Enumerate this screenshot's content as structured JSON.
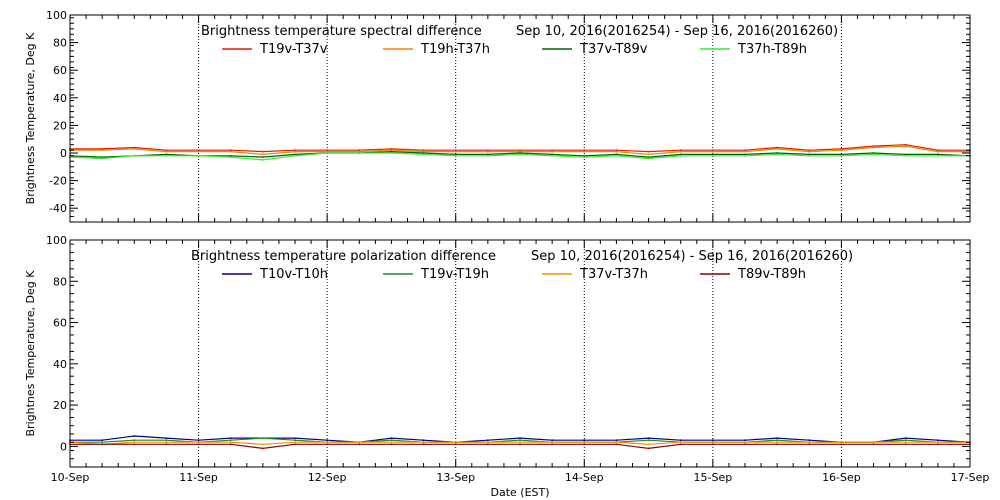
{
  "chart_data": [
    {
      "type": "line",
      "title_left": "Brightness temperature spectral difference",
      "title_right": "Sep 10, 2016(2016254) - Sep 16, 2016(2016260)",
      "ylabel": "Brightness Temperature, Deg K",
      "ylim": [
        -50,
        100
      ],
      "yticks": [
        -40,
        -20,
        0,
        20,
        40,
        60,
        80,
        100
      ],
      "xlim": [
        "2016-09-10",
        "2016-09-17"
      ],
      "grid": true,
      "legend_position": "top",
      "series": [
        {
          "name": "T19v-T37v",
          "color": "#dd2200",
          "x": [
            "2016-09-10T00:00",
            "2016-09-10T06:00",
            "2016-09-10T12:00",
            "2016-09-10T18:00",
            "2016-09-11T00:00",
            "2016-09-11T06:00",
            "2016-09-11T12:00",
            "2016-09-11T18:00",
            "2016-09-12T00:00",
            "2016-09-12T06:00",
            "2016-09-12T12:00",
            "2016-09-12T18:00",
            "2016-09-13T00:00",
            "2016-09-13T06:00",
            "2016-09-13T12:00",
            "2016-09-13T18:00",
            "2016-09-14T00:00",
            "2016-09-14T06:00",
            "2016-09-14T12:00",
            "2016-09-14T18:00",
            "2016-09-15T00:00",
            "2016-09-15T06:00",
            "2016-09-15T12:00",
            "2016-09-15T18:00",
            "2016-09-16T00:00",
            "2016-09-16T06:00",
            "2016-09-16T12:00",
            "2016-09-16T18:00",
            "2016-09-17T00:00"
          ],
          "y": [
            3,
            3,
            4,
            2,
            2,
            2,
            1,
            2,
            2,
            2,
            3,
            2,
            2,
            2,
            2,
            2,
            2,
            2,
            1,
            2,
            2,
            2,
            4,
            2,
            3,
            5,
            6,
            2,
            2
          ]
        },
        {
          "name": "T19h-T37h",
          "color": "#ff7f00",
          "x": [
            "2016-09-10T00:00",
            "2016-09-10T06:00",
            "2016-09-10T12:00",
            "2016-09-10T18:00",
            "2016-09-11T00:00",
            "2016-09-11T06:00",
            "2016-09-11T12:00",
            "2016-09-11T18:00",
            "2016-09-12T00:00",
            "2016-09-12T06:00",
            "2016-09-12T12:00",
            "2016-09-12T18:00",
            "2016-09-13T00:00",
            "2016-09-13T06:00",
            "2016-09-13T12:00",
            "2016-09-13T18:00",
            "2016-09-14T00:00",
            "2016-09-14T06:00",
            "2016-09-14T12:00",
            "2016-09-14T18:00",
            "2016-09-15T00:00",
            "2016-09-15T06:00",
            "2016-09-15T12:00",
            "2016-09-15T18:00",
            "2016-09-16T00:00",
            "2016-09-16T06:00",
            "2016-09-16T12:00",
            "2016-09-16T18:00",
            "2016-09-17T00:00"
          ],
          "y": [
            2,
            2,
            3,
            1,
            1,
            1,
            -1,
            1,
            1,
            1,
            2,
            1,
            1,
            1,
            1,
            1,
            1,
            1,
            -1,
            1,
            1,
            1,
            3,
            1,
            2,
            4,
            5,
            1,
            1
          ]
        },
        {
          "name": "T37v-T89v",
          "color": "#006400",
          "x": [
            "2016-09-10T00:00",
            "2016-09-10T06:00",
            "2016-09-10T12:00",
            "2016-09-10T18:00",
            "2016-09-11T00:00",
            "2016-09-11T06:00",
            "2016-09-11T12:00",
            "2016-09-11T18:00",
            "2016-09-12T00:00",
            "2016-09-12T06:00",
            "2016-09-12T12:00",
            "2016-09-12T18:00",
            "2016-09-13T00:00",
            "2016-09-13T06:00",
            "2016-09-13T12:00",
            "2016-09-13T18:00",
            "2016-09-14T00:00",
            "2016-09-14T06:00",
            "2016-09-14T12:00",
            "2016-09-14T18:00",
            "2016-09-15T00:00",
            "2016-09-15T06:00",
            "2016-09-15T12:00",
            "2016-09-15T18:00",
            "2016-09-16T00:00",
            "2016-09-16T06:00",
            "2016-09-16T12:00",
            "2016-09-16T18:00",
            "2016-09-17T00:00"
          ],
          "y": [
            -2,
            -3,
            -2,
            -1,
            -2,
            -2,
            -3,
            -1,
            0,
            0,
            1,
            0,
            -1,
            -1,
            0,
            -1,
            -2,
            -1,
            -3,
            -1,
            -1,
            -1,
            0,
            -1,
            -1,
            0,
            -1,
            -1,
            -2
          ]
        },
        {
          "name": "T37h-T89h",
          "color": "#33ee33",
          "x": [
            "2016-09-10T00:00",
            "2016-09-10T06:00",
            "2016-09-10T12:00",
            "2016-09-10T18:00",
            "2016-09-11T00:00",
            "2016-09-11T06:00",
            "2016-09-11T12:00",
            "2016-09-11T18:00",
            "2016-09-12T00:00",
            "2016-09-12T06:00",
            "2016-09-12T12:00",
            "2016-09-12T18:00",
            "2016-09-13T00:00",
            "2016-09-13T06:00",
            "2016-09-13T12:00",
            "2016-09-13T18:00",
            "2016-09-14T00:00",
            "2016-09-14T06:00",
            "2016-09-14T12:00",
            "2016-09-14T18:00",
            "2016-09-15T00:00",
            "2016-09-15T06:00",
            "2016-09-15T12:00",
            "2016-09-15T18:00",
            "2016-09-16T00:00",
            "2016-09-16T06:00",
            "2016-09-16T12:00",
            "2016-09-16T18:00",
            "2016-09-17T00:00"
          ],
          "y": [
            -3,
            -4,
            -2,
            -2,
            -2,
            -3,
            -5,
            -2,
            0,
            0,
            0,
            -1,
            -2,
            -2,
            -1,
            -2,
            -3,
            -2,
            -4,
            -2,
            -2,
            -2,
            -1,
            -2,
            -2,
            -1,
            -2,
            -2,
            -2
          ]
        }
      ]
    },
    {
      "type": "line",
      "title_left": "Brightness temperature polarization difference",
      "title_right": "Sep 10, 2016(2016254) - Sep 16, 2016(2016260)",
      "ylabel": "Brightnes Temperature, Deg K",
      "xlabel": "Date (EST)",
      "ylim": [
        -10,
        100
      ],
      "yticks": [
        0,
        20,
        40,
        60,
        80,
        100
      ],
      "xlim": [
        "2016-09-10",
        "2016-09-17"
      ],
      "xticks": [
        "10-Sep",
        "11-Sep",
        "12-Sep",
        "13-Sep",
        "14-Sep",
        "15-Sep",
        "16-Sep",
        "17-Sep"
      ],
      "grid": true,
      "legend_position": "top",
      "series": [
        {
          "name": "T10v-T10h",
          "color": "#00008b",
          "x": [
            "2016-09-10T00:00",
            "2016-09-10T06:00",
            "2016-09-10T12:00",
            "2016-09-10T18:00",
            "2016-09-11T00:00",
            "2016-09-11T06:00",
            "2016-09-11T12:00",
            "2016-09-11T18:00",
            "2016-09-12T00:00",
            "2016-09-12T06:00",
            "2016-09-12T12:00",
            "2016-09-12T18:00",
            "2016-09-13T00:00",
            "2016-09-13T06:00",
            "2016-09-13T12:00",
            "2016-09-13T18:00",
            "2016-09-14T00:00",
            "2016-09-14T06:00",
            "2016-09-14T12:00",
            "2016-09-14T18:00",
            "2016-09-15T00:00",
            "2016-09-15T06:00",
            "2016-09-15T12:00",
            "2016-09-15T18:00",
            "2016-09-16T00:00",
            "2016-09-16T06:00",
            "2016-09-16T12:00",
            "2016-09-16T18:00",
            "2016-09-17T00:00"
          ],
          "y": [
            3,
            3,
            5,
            4,
            3,
            4,
            4,
            4,
            3,
            2,
            4,
            3,
            2,
            3,
            4,
            3,
            3,
            3,
            4,
            3,
            3,
            3,
            4,
            3,
            2,
            2,
            4,
            3,
            2
          ]
        },
        {
          "name": "T19v-T19h",
          "color": "#228b22",
          "x": [
            "2016-09-10T00:00",
            "2016-09-10T06:00",
            "2016-09-10T12:00",
            "2016-09-10T18:00",
            "2016-09-11T00:00",
            "2016-09-11T06:00",
            "2016-09-11T12:00",
            "2016-09-11T18:00",
            "2016-09-12T00:00",
            "2016-09-12T06:00",
            "2016-09-12T12:00",
            "2016-09-12T18:00",
            "2016-09-13T00:00",
            "2016-09-13T06:00",
            "2016-09-13T12:00",
            "2016-09-13T18:00",
            "2016-09-14T00:00",
            "2016-09-14T06:00",
            "2016-09-14T12:00",
            "2016-09-14T18:00",
            "2016-09-15T00:00",
            "2016-09-15T06:00",
            "2016-09-15T12:00",
            "2016-09-15T18:00",
            "2016-09-16T00:00",
            "2016-09-16T06:00",
            "2016-09-16T12:00",
            "2016-09-16T18:00",
            "2016-09-17T00:00"
          ],
          "y": [
            2,
            2,
            3,
            3,
            2,
            3,
            4,
            3,
            2,
            2,
            3,
            2,
            2,
            2,
            3,
            2,
            2,
            2,
            3,
            2,
            2,
            2,
            3,
            2,
            2,
            2,
            3,
            2,
            2
          ]
        },
        {
          "name": "T37v-T37h",
          "color": "#ff8c00",
          "x": [
            "2016-09-10T00:00",
            "2016-09-10T06:00",
            "2016-09-10T12:00",
            "2016-09-10T18:00",
            "2016-09-11T00:00",
            "2016-09-11T06:00",
            "2016-09-11T12:00",
            "2016-09-11T18:00",
            "2016-09-12T00:00",
            "2016-09-12T06:00",
            "2016-09-12T12:00",
            "2016-09-12T18:00",
            "2016-09-13T00:00",
            "2016-09-13T06:00",
            "2016-09-13T12:00",
            "2016-09-13T18:00",
            "2016-09-14T00:00",
            "2016-09-14T06:00",
            "2016-09-14T12:00",
            "2016-09-14T18:00",
            "2016-09-15T00:00",
            "2016-09-15T06:00",
            "2016-09-15T12:00",
            "2016-09-15T18:00",
            "2016-09-16T00:00",
            "2016-09-16T06:00",
            "2016-09-16T12:00",
            "2016-09-16T18:00",
            "2016-09-17T00:00"
          ],
          "y": [
            2,
            1,
            2,
            2,
            2,
            2,
            1,
            2,
            2,
            2,
            2,
            2,
            2,
            2,
            2,
            2,
            2,
            2,
            1,
            2,
            2,
            2,
            2,
            2,
            2,
            2,
            2,
            2,
            2
          ]
        },
        {
          "name": "T89v-T89h",
          "color": "#8b0000",
          "x": [
            "2016-09-10T00:00",
            "2016-09-10T06:00",
            "2016-09-10T12:00",
            "2016-09-10T18:00",
            "2016-09-11T00:00",
            "2016-09-11T06:00",
            "2016-09-11T12:00",
            "2016-09-11T18:00",
            "2016-09-12T00:00",
            "2016-09-12T06:00",
            "2016-09-12T12:00",
            "2016-09-12T18:00",
            "2016-09-13T00:00",
            "2016-09-13T06:00",
            "2016-09-13T12:00",
            "2016-09-13T18:00",
            "2016-09-14T00:00",
            "2016-09-14T06:00",
            "2016-09-14T12:00",
            "2016-09-14T18:00",
            "2016-09-15T00:00",
            "2016-09-15T06:00",
            "2016-09-15T12:00",
            "2016-09-15T18:00",
            "2016-09-16T00:00",
            "2016-09-16T06:00",
            "2016-09-16T12:00",
            "2016-09-16T18:00",
            "2016-09-17T00:00"
          ],
          "y": [
            1,
            1,
            1,
            1,
            1,
            1,
            -1,
            1,
            1,
            1,
            1,
            1,
            1,
            1,
            1,
            1,
            1,
            1,
            -1,
            1,
            1,
            1,
            1,
            1,
            1,
            1,
            1,
            1,
            1
          ]
        }
      ]
    }
  ]
}
